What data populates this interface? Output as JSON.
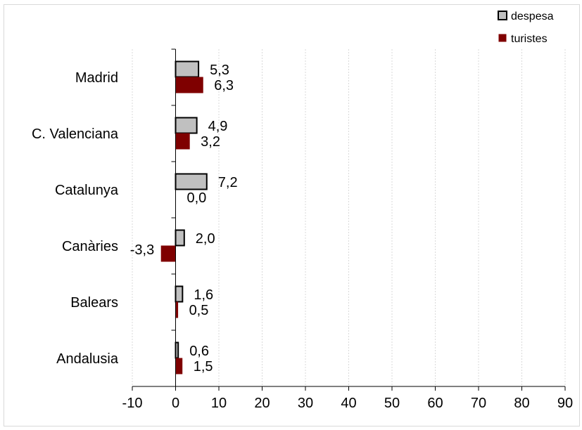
{
  "chart_data": {
    "type": "bar",
    "orientation": "horizontal",
    "categories": [
      "Madrid",
      "C. Valenciana",
      "Catalunya",
      "Canàries",
      "Balears",
      "Andalusia"
    ],
    "series": [
      {
        "name": "despesa",
        "values": [
          5.3,
          4.9,
          7.2,
          2.0,
          1.6,
          0.6
        ],
        "labels": [
          "5,3",
          "4,9",
          "7,2",
          "2,0",
          "1,6",
          "0,6"
        ],
        "color": "#c0c0c0",
        "stroke": "#000000"
      },
      {
        "name": "turistes",
        "values": [
          6.3,
          3.2,
          0.0,
          -3.3,
          0.5,
          1.5
        ],
        "labels": [
          "6,3",
          "3,2",
          "0,0",
          "-3,3",
          "0,5",
          "1,5"
        ],
        "color": "#7f0000",
        "stroke": "#7f0000"
      }
    ],
    "xlim": [
      -10,
      90
    ],
    "xticks": [
      -10,
      0,
      10,
      20,
      30,
      40,
      50,
      60,
      70,
      80,
      90
    ],
    "xtick_labels": [
      "-10",
      "0",
      "10",
      "20",
      "30",
      "40",
      "50",
      "60",
      "70",
      "80",
      "90"
    ],
    "xlabel": "",
    "ylabel": "",
    "title": "",
    "grid": "vertical dashed",
    "legend": "top-right"
  }
}
